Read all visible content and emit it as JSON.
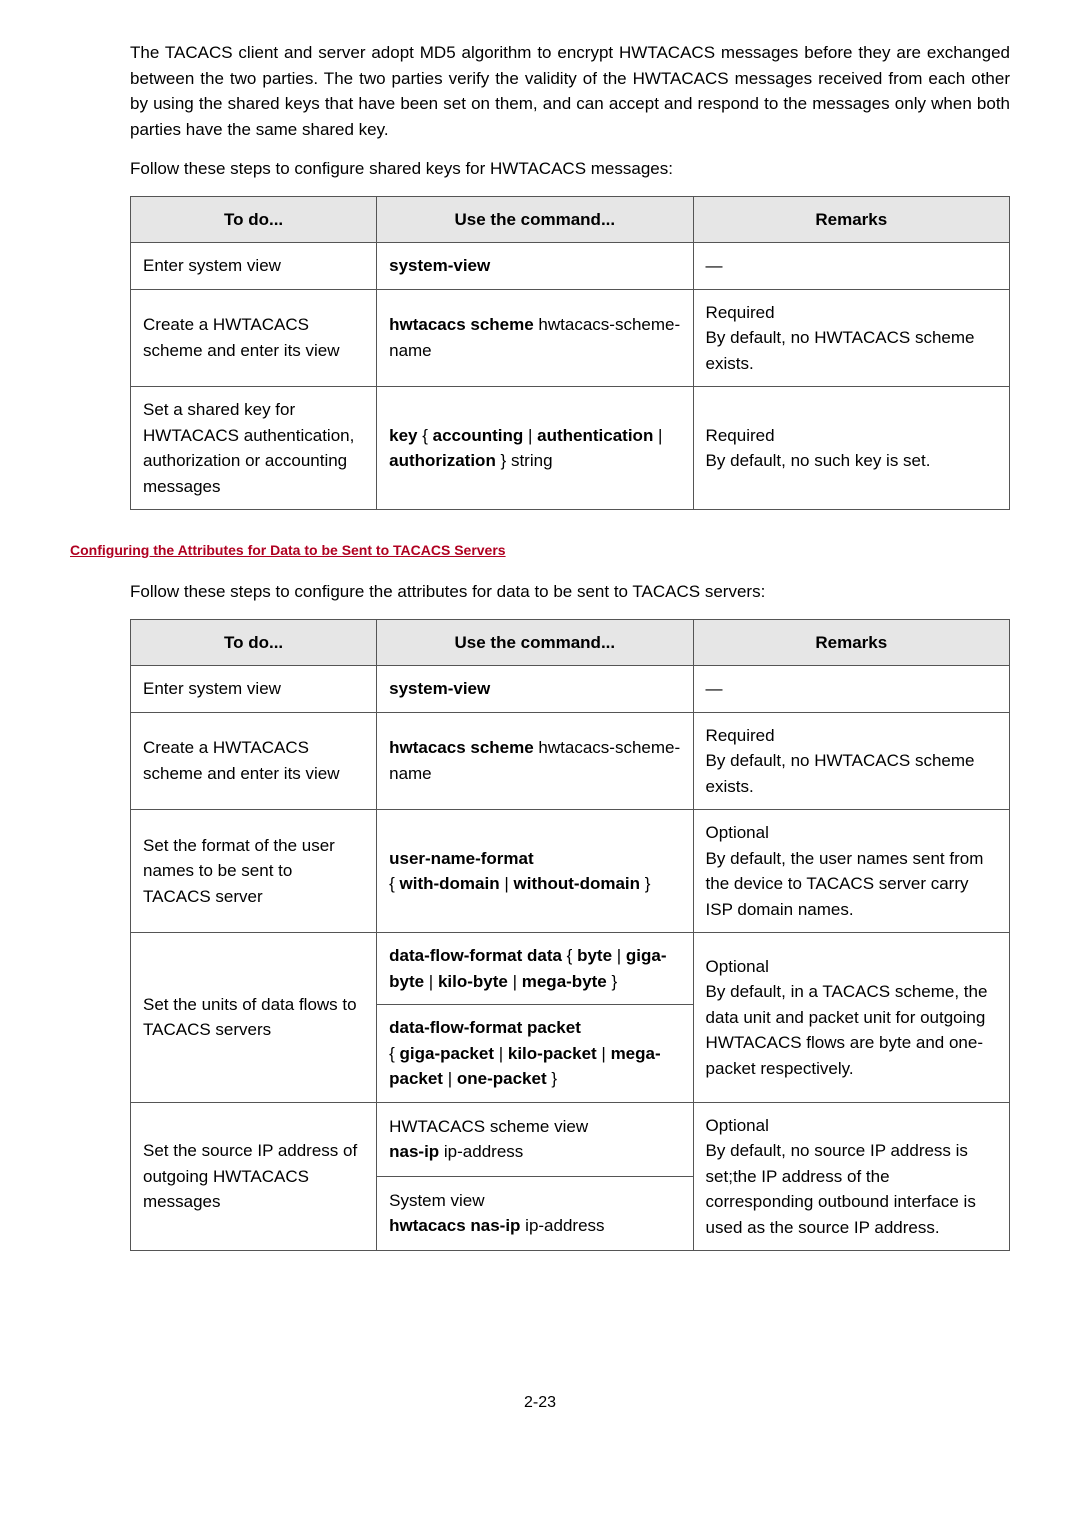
{
  "intro": {
    "p1": "The TACACS client and server adopt MD5 algorithm to encrypt HWTACACS messages before they are exchanged between the two parties. The two parties verify the validity of the HWTACACS messages received from each other by using the shared keys that have been set on them, and can accept and respond to the messages only when both parties have the same shared key.",
    "p2": "Follow these steps to configure shared keys for HWTACACS messages:"
  },
  "table1": {
    "headers": [
      "To do...",
      "Use the command...",
      "Remarks"
    ],
    "rows": [
      {
        "todo": "Enter system view",
        "cmd_bold": "system-view",
        "cmd_plain": "",
        "remarks": "—"
      },
      {
        "todo": "Create a HWTACACS scheme and enter its view",
        "cmd_bold": "hwtacacs scheme",
        "cmd_plain": " hwtacacs-scheme-name",
        "remarks_l1": "Required",
        "remarks_l2": "By default, no HWTACACS scheme exists."
      },
      {
        "todo": "Set a shared key for HWTACACS authentication, authorization or accounting messages",
        "cmd_pre": "key",
        "cmd_opt1": "accounting",
        "cmd_opt2": "authentication",
        "cmd_opt3": "authorization",
        "cmd_tail": "string",
        "remarks_l1": "Required",
        "remarks_l2": "By default, no such key is set."
      }
    ]
  },
  "section_title": "Configuring the Attributes for Data to be Sent to TACACS Servers",
  "intro2": "Follow these steps to configure the attributes for data to be sent to TACACS servers:",
  "table2": {
    "headers": [
      "To do...",
      "Use the command...",
      "Remarks"
    ],
    "rows": [
      {
        "todo": "Enter system view",
        "cmd_bold": "system-view",
        "remarks": "—"
      },
      {
        "todo": "Create a HWTACACS scheme and enter its view",
        "cmd_bold": "hwtacacs scheme",
        "cmd_plain": " hwtacacs-scheme-name",
        "remarks_l1": "Required",
        "remarks_l2": "By default, no HWTACACS scheme exists."
      },
      {
        "todo": "Set the format of the user names to be sent to TACACS server",
        "cmd_bold": "user-name-format",
        "cmd_opt1": "with-domain",
        "cmd_opt2": "without-domain",
        "remarks_l1": "Optional",
        "remarks_l2": "By default, the user names sent from the device to TACACS server carry ISP domain names."
      },
      {
        "todo": "Set the units of data flows to TACACS servers",
        "cmdA_bold": "data-flow-format data",
        "cmdA_o1": "byte",
        "cmdA_o2": "giga-byte",
        "cmdA_o3": "kilo-byte",
        "cmdA_o4": "mega-byte",
        "cmdB_bold": "data-flow-format packet",
        "cmdB_o1": "giga-packet",
        "cmdB_o2": "kilo-packet",
        "cmdB_o3": "mega-packet",
        "cmdB_o4": "one-packet",
        "remarks_l1": "Optional",
        "remarks_l2": "By default, in a TACACS scheme, the data unit and packet unit for outgoing HWTACACS flows are byte and one-packet respectively."
      },
      {
        "todo": "Set the source IP address of outgoing HWTACACS messages",
        "cmdA_pre": "HWTACACS scheme view",
        "cmdA_bold": "nas-ip",
        "cmdA_plain": " ip-address",
        "cmdB_pre": "System view",
        "cmdB_bold": "hwtacacs nas-ip",
        "cmdB_plain": " ip-address",
        "remarks_l1": "Optional",
        "remarks_l2": "By default, no source IP address is set;the IP address of the corresponding outbound interface is used as the source IP address."
      }
    ]
  },
  "pagenum": "2-23"
}
